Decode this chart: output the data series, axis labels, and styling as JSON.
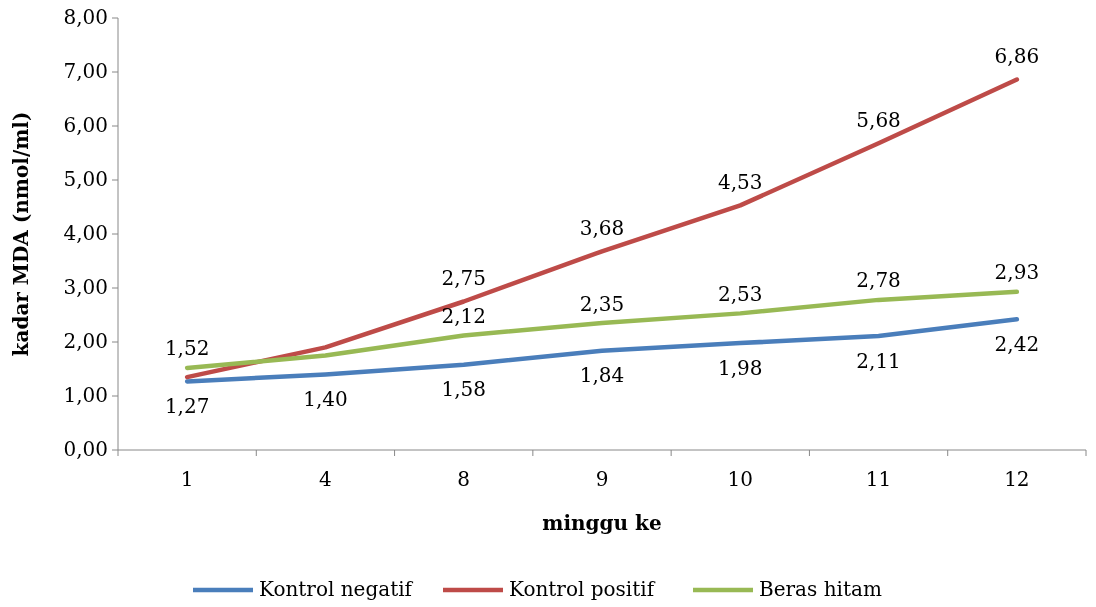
{
  "chart_data": {
    "type": "line",
    "xlabel": "minggu ke",
    "ylabel": "kadar MDA (nmol/ml)",
    "categories": [
      "1",
      "4",
      "8",
      "9",
      "10",
      "11",
      "12"
    ],
    "ylim": [
      0,
      8
    ],
    "yticks": [
      {
        "value": 0,
        "label": "0,00"
      },
      {
        "value": 1,
        "label": "1,00"
      },
      {
        "value": 2,
        "label": "2,00"
      },
      {
        "value": 3,
        "label": "3,00"
      },
      {
        "value": 4,
        "label": "4,00"
      },
      {
        "value": 5,
        "label": "5,00"
      },
      {
        "value": 6,
        "label": "6,00"
      },
      {
        "value": 7,
        "label": "7,00"
      },
      {
        "value": 8,
        "label": "8,00"
      }
    ],
    "grid": false,
    "legend": "bottom",
    "marker": "none",
    "line_style": "solid",
    "series": [
      {
        "name": "Kontrol negatif",
        "color": "#4a7ebb",
        "values": [
          1.27,
          1.4,
          1.58,
          1.84,
          1.98,
          2.11,
          2.42
        ],
        "value_labels": [
          "1,27",
          "1,40",
          "1,58",
          "1,84",
          "1,98",
          "2,11",
          "2,42"
        ]
      },
      {
        "name": "Kontrol positif",
        "color": "#be4b48",
        "values": [
          1.35,
          1.9,
          2.75,
          3.68,
          4.53,
          5.68,
          6.86
        ],
        "value_labels": [
          null,
          null,
          "2,75",
          "3,68",
          "4,53",
          "5,68",
          "6,86"
        ]
      },
      {
        "name": "Beras hitam",
        "color": "#98b954",
        "values": [
          1.52,
          1.75,
          2.12,
          2.35,
          2.53,
          2.78,
          2.93
        ],
        "value_labels": [
          "1,52",
          null,
          "2,12",
          "2,35",
          "2,53",
          "2,78",
          "2,93"
        ]
      }
    ]
  }
}
